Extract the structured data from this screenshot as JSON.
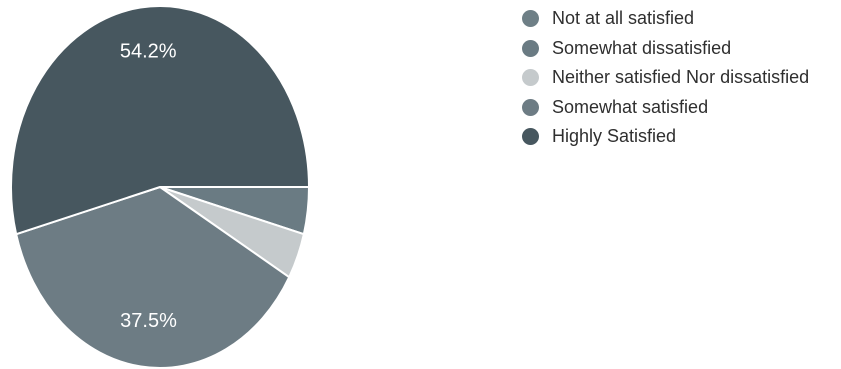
{
  "chart_data": {
    "type": "pie",
    "categories": [
      "Not at all satisfied",
      "Somewhat dissatisfied",
      "Neither satisfied Nor dissatisfied",
      "Somewhat satisfied",
      "Highly Satisfied"
    ],
    "values": [
      0,
      4.2,
      4.1,
      37.5,
      54.2
    ],
    "colors": [
      "#6e7f86",
      "#6a7b83",
      "#c5cacc",
      "#6d7c84",
      "#47575f"
    ],
    "data_labels": [
      "",
      "",
      "",
      "37.5%",
      "54.2%"
    ],
    "label_color": "#ffffff",
    "edge_color": "#ffffff",
    "legend_position": "right",
    "start_angle_deg": 0,
    "direction": "clockwise"
  }
}
